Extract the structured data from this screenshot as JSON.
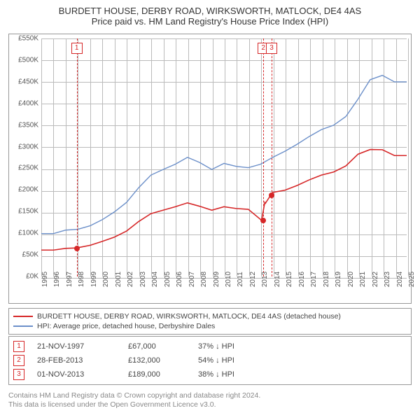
{
  "title": "BURDETT HOUSE, DERBY ROAD, WIRKSWORTH, MATLOCK, DE4 4AS",
  "subtitle": "Price paid vs. HM Land Registry's House Price Index (HPI)",
  "chart": {
    "type": "line",
    "x_years": [
      1995,
      1996,
      1997,
      1998,
      1999,
      2000,
      2001,
      2002,
      2003,
      2004,
      2005,
      2006,
      2007,
      2008,
      2009,
      2010,
      2011,
      2012,
      2013,
      2014,
      2015,
      2016,
      2017,
      2018,
      2019,
      2020,
      2021,
      2022,
      2023,
      2024,
      2025
    ],
    "ylim": [
      0,
      550
    ],
    "ytick_step": 50,
    "y_prefix": "£",
    "y_suffix": "K",
    "grid_color": "#bbbbbb",
    "background_color": "#ffffff",
    "series": [
      {
        "name": "hpi",
        "label": "HPI: Average price, detached house, Derbyshire Dales",
        "color": "#6b8fc9",
        "width": 1.4,
        "data": [
          [
            1995,
            100
          ],
          [
            1996,
            100
          ],
          [
            1997,
            108
          ],
          [
            1998,
            110
          ],
          [
            1999,
            118
          ],
          [
            2000,
            132
          ],
          [
            2001,
            150
          ],
          [
            2002,
            172
          ],
          [
            2003,
            206
          ],
          [
            2004,
            235
          ],
          [
            2005,
            248
          ],
          [
            2006,
            260
          ],
          [
            2007,
            276
          ],
          [
            2008,
            264
          ],
          [
            2009,
            248
          ],
          [
            2010,
            262
          ],
          [
            2011,
            255
          ],
          [
            2012,
            252
          ],
          [
            2013,
            260
          ],
          [
            2014,
            276
          ],
          [
            2015,
            290
          ],
          [
            2016,
            306
          ],
          [
            2017,
            324
          ],
          [
            2018,
            340
          ],
          [
            2019,
            350
          ],
          [
            2020,
            370
          ],
          [
            2021,
            410
          ],
          [
            2022,
            455
          ],
          [
            2023,
            465
          ],
          [
            2024,
            450
          ],
          [
            2025,
            450
          ]
        ]
      },
      {
        "name": "property",
        "label": "BURDETT HOUSE, DERBY ROAD, WIRKSWORTH, MATLOCK, DE4 4AS (detached house)",
        "color": "#d62728",
        "width": 1.6,
        "data": [
          [
            1995,
            62
          ],
          [
            1996,
            62
          ],
          [
            1997,
            66
          ],
          [
            1997.9,
            67
          ],
          [
            1999,
            73
          ],
          [
            2000,
            82
          ],
          [
            2001,
            92
          ],
          [
            2002,
            106
          ],
          [
            2003,
            128
          ],
          [
            2004,
            146
          ],
          [
            2005,
            154
          ],
          [
            2006,
            162
          ],
          [
            2007,
            171
          ],
          [
            2008,
            163
          ],
          [
            2009,
            154
          ],
          [
            2010,
            162
          ],
          [
            2011,
            158
          ],
          [
            2012,
            156
          ],
          [
            2013.05,
            131.5
          ],
          [
            2013.1,
            132
          ],
          [
            2013.35,
            172
          ],
          [
            2013.4,
            170
          ],
          [
            2013.84,
            189
          ],
          [
            2014,
            195
          ],
          [
            2015,
            200
          ],
          [
            2016,
            211
          ],
          [
            2017,
            224
          ],
          [
            2018,
            235
          ],
          [
            2019,
            242
          ],
          [
            2020,
            256
          ],
          [
            2021,
            283
          ],
          [
            2022,
            294
          ],
          [
            2023,
            293.5
          ],
          [
            2024,
            280
          ],
          [
            2025,
            280
          ]
        ]
      }
    ],
    "vlines": [
      {
        "year": 1997.9,
        "color": "#d62728",
        "marker": "1"
      },
      {
        "year": 2013.16,
        "color": "#d62728",
        "marker": "2"
      },
      {
        "year": 2013.84,
        "color": "#d62728",
        "marker": "3"
      }
    ],
    "sale_points": [
      {
        "year": 1997.9,
        "price": 67,
        "color": "#d62728"
      },
      {
        "year": 2013.16,
        "price": 132,
        "color": "#d62728"
      },
      {
        "year": 2013.84,
        "price": 189,
        "color": "#d62728"
      }
    ],
    "title_fontsize": 13,
    "axis_fontsize": 10
  },
  "legend": [
    {
      "color": "#d62728",
      "label": "BURDETT HOUSE, DERBY ROAD, WIRKSWORTH, MATLOCK, DE4 4AS (detached house)"
    },
    {
      "color": "#6b8fc9",
      "label": "HPI: Average price, detached house, Derbyshire Dales"
    }
  ],
  "events": [
    {
      "n": "1",
      "date": "21-NOV-1997",
      "price": "£67,000",
      "delta": "37% ↓ HPI"
    },
    {
      "n": "2",
      "date": "28-FEB-2013",
      "price": "£132,000",
      "delta": "54% ↓ HPI"
    },
    {
      "n": "3",
      "date": "01-NOV-2013",
      "price": "£189,000",
      "delta": "38% ↓ HPI"
    }
  ],
  "footer_line1": "Contains HM Land Registry data © Crown copyright and database right 2024.",
  "footer_line2": "This data is licensed under the Open Government Licence v3.0."
}
